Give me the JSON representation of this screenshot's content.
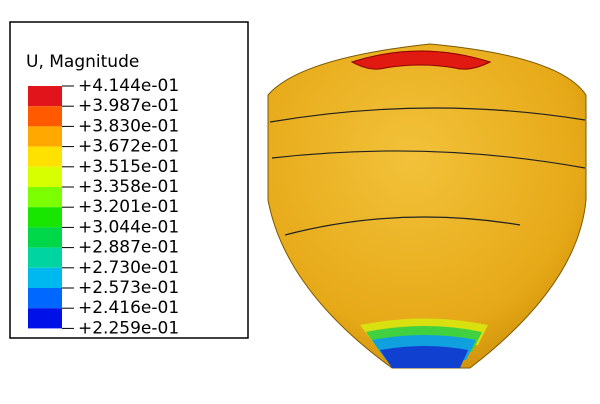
{
  "legend": {
    "title": "U, Magnitude",
    "labels": [
      "+4.144e-01",
      "+3.987e-01",
      "+3.830e-01",
      "+3.672e-01",
      "+3.515e-01",
      "+3.358e-01",
      "+3.201e-01",
      "+3.044e-01",
      "+2.887e-01",
      "+2.730e-01",
      "+2.573e-01",
      "+2.416e-01",
      "+2.259e-01"
    ]
  }
}
